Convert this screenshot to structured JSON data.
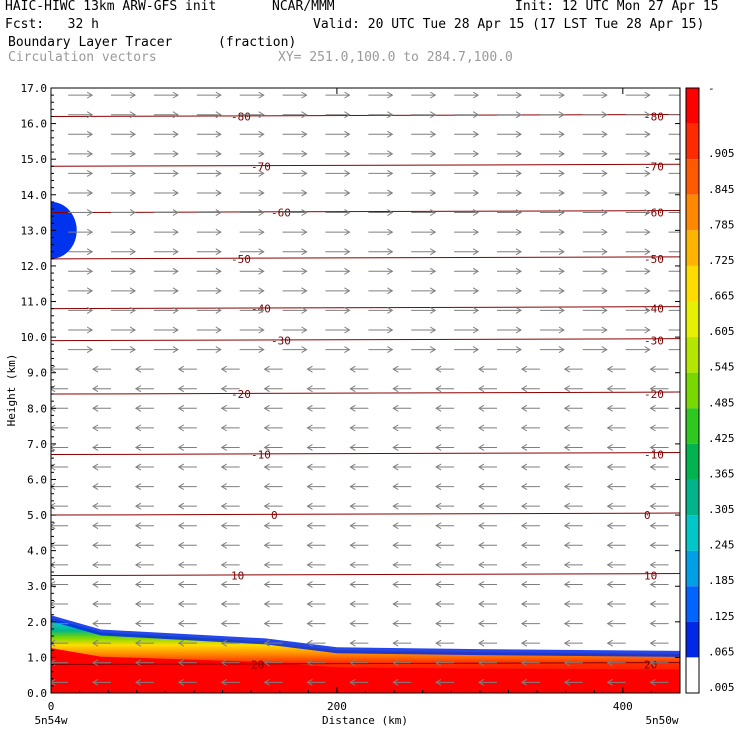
{
  "header": {
    "title_left": "HAIC-HIWC 13km ARW-GFS init",
    "title_center": "NCAR/MMM",
    "init": "Init: 12 UTC Mon 27 Apr 15",
    "fcst": "Fcst:   32 h",
    "valid": "Valid: 20 UTC Tue 28 Apr 15 (17 LST Tue 28 Apr 15)",
    "field_name": "Boundary Layer Tracer",
    "field_units": "(fraction)",
    "overlay_name": "Circulation vectors",
    "xy_range": "XY= 251.0,100.0 to 284.7,100.0"
  },
  "chart_data": {
    "type": "heatmap",
    "title": "Boundary Layer Tracer",
    "units": "(fraction)",
    "xlabel": "Distance (km)",
    "ylabel": "Height (km)",
    "xlim": [
      0,
      440
    ],
    "ylim": [
      0,
      17
    ],
    "x_ticks": [
      "0",
      "200",
      "400"
    ],
    "x_tick_values": [
      0,
      200,
      400
    ],
    "x_endpoints": [
      "5n54w",
      "5n50w"
    ],
    "y_ticks": [
      "0.0",
      "1.0",
      "2.0",
      "3.0",
      "4.0",
      "5.0",
      "6.0",
      "7.0",
      "8.0",
      "9.0",
      "10.0",
      "11.0",
      "12.0",
      "13.0",
      "14.0",
      "15.0",
      "16.0",
      "17.0"
    ],
    "colorbar_labels": [
      "-",
      ".905",
      ".845",
      ".785",
      ".725",
      ".665",
      ".605",
      ".545",
      ".485",
      ".425",
      ".365",
      ".305",
      ".245",
      ".185",
      ".125",
      ".065",
      ".005"
    ],
    "colorbar_colors": [
      "#ff0000",
      "#ff2a00",
      "#ff5a00",
      "#ff8800",
      "#ffb400",
      "#ffdc00",
      "#e6f000",
      "#b4e600",
      "#78d800",
      "#2ec81e",
      "#00b450",
      "#00b48c",
      "#00c8c8",
      "#00a0e6",
      "#0064ff",
      "#0028e6",
      "#ffffff"
    ],
    "temperature_contours": [
      {
        "label": "-80",
        "height_km": 16.2
      },
      {
        "label": "-70",
        "height_km": 14.8
      },
      {
        "label": "-60",
        "height_km": 13.5
      },
      {
        "label": "-50",
        "height_km": 12.2
      },
      {
        "label": "-40",
        "height_km": 10.8
      },
      {
        "label": "-30",
        "height_km": 9.9
      },
      {
        "label": "-20",
        "height_km": 8.4
      },
      {
        "label": "-10",
        "height_km": 6.7
      },
      {
        "label": "0",
        "height_km": 5.0
      },
      {
        "label": "10",
        "height_km": 3.3
      },
      {
        "label": "20",
        "height_km": 0.8
      }
    ],
    "tracer_surface_layer": [
      {
        "x": 0,
        "top_km": 2.1
      },
      {
        "x": 35,
        "top_km": 1.7
      },
      {
        "x": 150,
        "top_km": 1.45
      },
      {
        "x": 200,
        "top_km": 1.2
      },
      {
        "x": 300,
        "top_km": 1.15
      },
      {
        "x": 440,
        "top_km": 1.1
      }
    ],
    "tracer_upper_patch": {
      "x": [
        0,
        18
      ],
      "y_km": [
        12.2,
        13.8
      ],
      "value": 0.035
    },
    "wind_regime": [
      {
        "height_km_from": 9.5,
        "height_km_to": 17.0,
        "direction": "westerly"
      },
      {
        "height_km_from": 0.0,
        "height_km_to": 9.5,
        "direction": "easterly"
      }
    ]
  }
}
